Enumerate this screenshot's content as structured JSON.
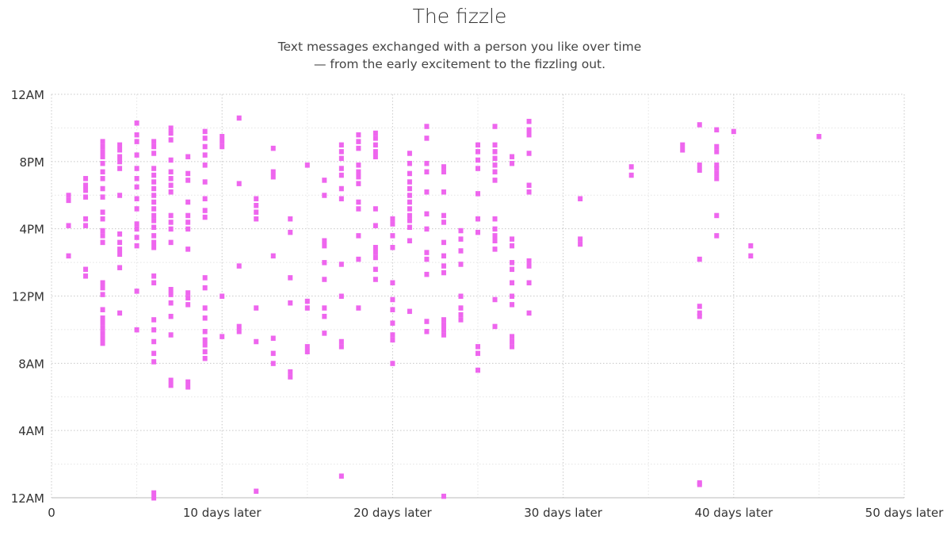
{
  "chart_data": {
    "type": "scatter",
    "title": "The fizzle",
    "subtitle": "Text messages exchanged with a person you like over time — from the early excitement to the fizzling out.",
    "xlabel": "",
    "ylabel": "",
    "x_unit": "days",
    "y_unit": "hour of day (0 = 12AM)",
    "xlim": [
      0,
      50
    ],
    "ylim": [
      0,
      24
    ],
    "grid": true,
    "color": "#ee66ee",
    "x_ticks": [
      {
        "value": 0,
        "label": "0"
      },
      {
        "value": 10,
        "label": "10 days later"
      },
      {
        "value": 20,
        "label": "20 days later"
      },
      {
        "value": 30,
        "label": "30 days later"
      },
      {
        "value": 40,
        "label": "40 days later"
      },
      {
        "value": 50,
        "label": "50 days later"
      }
    ],
    "y_ticks": [
      {
        "value": 0,
        "label": "12AM"
      },
      {
        "value": 4,
        "label": "4AM"
      },
      {
        "value": 8,
        "label": "8AM"
      },
      {
        "value": 12,
        "label": "12PM"
      },
      {
        "value": 16,
        "label": "4PM"
      },
      {
        "value": 20,
        "label": "8PM"
      },
      {
        "value": 24,
        "label": "12AM"
      }
    ],
    "points": [
      [
        1,
        18.0
      ],
      [
        1,
        17.7
      ],
      [
        1,
        16.2
      ],
      [
        1,
        14.4
      ],
      [
        2,
        19.0
      ],
      [
        2,
        18.6
      ],
      [
        2,
        18.3
      ],
      [
        2,
        17.9
      ],
      [
        2,
        16.6
      ],
      [
        2,
        16.2
      ],
      [
        2,
        13.6
      ],
      [
        2,
        13.2
      ],
      [
        3,
        21.2
      ],
      [
        3,
        20.9
      ],
      [
        3,
        20.6
      ],
      [
        3,
        20.3
      ],
      [
        3,
        19.9
      ],
      [
        3,
        19.4
      ],
      [
        3,
        19.0
      ],
      [
        3,
        18.4
      ],
      [
        3,
        17.9
      ],
      [
        3,
        17.0
      ],
      [
        3,
        16.6
      ],
      [
        3,
        15.9
      ],
      [
        3,
        15.6
      ],
      [
        3,
        15.2
      ],
      [
        3,
        12.8
      ],
      [
        3,
        12.5
      ],
      [
        3,
        12.1
      ],
      [
        3,
        11.2
      ],
      [
        3,
        10.7
      ],
      [
        3,
        10.4
      ],
      [
        3,
        10.1
      ],
      [
        3,
        9.8
      ],
      [
        3,
        9.5
      ],
      [
        3,
        9.2
      ],
      [
        4,
        21.0
      ],
      [
        4,
        20.7
      ],
      [
        4,
        20.3
      ],
      [
        4,
        20.0
      ],
      [
        4,
        19.6
      ],
      [
        4,
        18.0
      ],
      [
        4,
        15.7
      ],
      [
        4,
        14.8
      ],
      [
        4,
        14.5
      ],
      [
        4,
        15.2
      ],
      [
        4,
        13.7
      ],
      [
        4,
        11.0
      ],
      [
        5,
        22.3
      ],
      [
        5,
        21.6
      ],
      [
        5,
        21.2
      ],
      [
        5,
        20.4
      ],
      [
        5,
        19.6
      ],
      [
        5,
        19.0
      ],
      [
        5,
        18.5
      ],
      [
        5,
        17.8
      ],
      [
        5,
        17.2
      ],
      [
        5,
        16.3
      ],
      [
        5,
        16.0
      ],
      [
        5,
        15.5
      ],
      [
        5,
        15.0
      ],
      [
        5,
        12.3
      ],
      [
        5,
        10.0
      ],
      [
        6,
        21.2
      ],
      [
        6,
        20.9
      ],
      [
        6,
        20.5
      ],
      [
        6,
        19.6
      ],
      [
        6,
        19.2
      ],
      [
        6,
        18.8
      ],
      [
        6,
        18.4
      ],
      [
        6,
        18.0
      ],
      [
        6,
        17.6
      ],
      [
        6,
        17.2
      ],
      [
        6,
        16.8
      ],
      [
        6,
        16.5
      ],
      [
        6,
        16.1
      ],
      [
        6,
        15.6
      ],
      [
        6,
        15.2
      ],
      [
        6,
        14.9
      ],
      [
        6,
        13.2
      ],
      [
        6,
        12.8
      ],
      [
        6,
        10.6
      ],
      [
        6,
        10.0
      ],
      [
        6,
        9.3
      ],
      [
        6,
        8.6
      ],
      [
        6,
        8.1
      ],
      [
        6,
        0.3
      ],
      [
        6,
        0.0
      ],
      [
        7,
        22.0
      ],
      [
        7,
        21.7
      ],
      [
        7,
        21.3
      ],
      [
        7,
        20.1
      ],
      [
        7,
        19.4
      ],
      [
        7,
        19.0
      ],
      [
        7,
        18.6
      ],
      [
        7,
        18.2
      ],
      [
        7,
        16.8
      ],
      [
        7,
        16.4
      ],
      [
        7,
        16.0
      ],
      [
        7,
        15.2
      ],
      [
        7,
        12.4
      ],
      [
        7,
        12.1
      ],
      [
        7,
        11.6
      ],
      [
        7,
        10.8
      ],
      [
        7,
        9.7
      ],
      [
        7,
        7.0
      ],
      [
        7,
        6.7
      ],
      [
        8,
        20.3
      ],
      [
        8,
        19.3
      ],
      [
        8,
        18.9
      ],
      [
        8,
        17.6
      ],
      [
        8,
        16.8
      ],
      [
        8,
        16.4
      ],
      [
        8,
        16.0
      ],
      [
        8,
        14.8
      ],
      [
        8,
        12.2
      ],
      [
        8,
        11.9
      ],
      [
        8,
        11.5
      ],
      [
        8,
        6.9
      ],
      [
        8,
        6.6
      ],
      [
        9,
        21.8
      ],
      [
        9,
        21.4
      ],
      [
        9,
        20.9
      ],
      [
        9,
        20.4
      ],
      [
        9,
        19.8
      ],
      [
        9,
        18.8
      ],
      [
        9,
        17.8
      ],
      [
        9,
        17.1
      ],
      [
        9,
        16.7
      ],
      [
        9,
        13.1
      ],
      [
        9,
        12.5
      ],
      [
        9,
        11.3
      ],
      [
        9,
        10.7
      ],
      [
        9,
        9.9
      ],
      [
        9,
        9.4
      ],
      [
        9,
        9.1
      ],
      [
        9,
        8.7
      ],
      [
        9,
        8.3
      ],
      [
        10,
        21.5
      ],
      [
        10,
        21.2
      ],
      [
        10,
        20.9
      ],
      [
        10,
        12.0
      ],
      [
        10,
        9.6
      ],
      [
        11,
        22.6
      ],
      [
        11,
        18.7
      ],
      [
        11,
        13.8
      ],
      [
        11,
        10.2
      ],
      [
        11,
        9.9
      ],
      [
        12,
        17.8
      ],
      [
        12,
        17.4
      ],
      [
        12,
        17.0
      ],
      [
        12,
        16.6
      ],
      [
        12,
        11.3
      ],
      [
        12,
        9.3
      ],
      [
        12,
        0.4
      ],
      [
        13,
        20.8
      ],
      [
        13,
        19.4
      ],
      [
        13,
        19.1
      ],
      [
        13,
        14.4
      ],
      [
        13,
        9.5
      ],
      [
        13,
        8.6
      ],
      [
        13,
        8.0
      ],
      [
        14,
        16.6
      ],
      [
        14,
        15.8
      ],
      [
        14,
        13.1
      ],
      [
        14,
        11.6
      ],
      [
        14,
        7.5
      ],
      [
        14,
        7.2
      ],
      [
        15,
        19.8
      ],
      [
        15,
        11.7
      ],
      [
        15,
        11.3
      ],
      [
        15,
        9.0
      ],
      [
        15,
        8.7
      ],
      [
        16,
        18.9
      ],
      [
        16,
        18.0
      ],
      [
        16,
        15.3
      ],
      [
        16,
        15.0
      ],
      [
        16,
        14.0
      ],
      [
        16,
        13.0
      ],
      [
        16,
        11.3
      ],
      [
        16,
        10.8
      ],
      [
        16,
        9.8
      ],
      [
        17,
        21.0
      ],
      [
        17,
        20.6
      ],
      [
        17,
        20.2
      ],
      [
        17,
        19.6
      ],
      [
        17,
        19.2
      ],
      [
        17,
        18.4
      ],
      [
        17,
        17.8
      ],
      [
        17,
        13.9
      ],
      [
        17,
        12.0
      ],
      [
        17,
        9.3
      ],
      [
        17,
        9.0
      ],
      [
        17,
        1.3
      ],
      [
        18,
        21.6
      ],
      [
        18,
        21.2
      ],
      [
        18,
        20.8
      ],
      [
        18,
        19.8
      ],
      [
        18,
        19.4
      ],
      [
        18,
        19.1
      ],
      [
        18,
        18.7
      ],
      [
        18,
        17.6
      ],
      [
        18,
        17.2
      ],
      [
        18,
        15.6
      ],
      [
        18,
        14.2
      ],
      [
        18,
        11.3
      ],
      [
        19,
        21.7
      ],
      [
        19,
        21.4
      ],
      [
        19,
        21.0
      ],
      [
        19,
        20.6
      ],
      [
        19,
        20.3
      ],
      [
        19,
        17.2
      ],
      [
        19,
        16.2
      ],
      [
        19,
        14.9
      ],
      [
        19,
        14.6
      ],
      [
        19,
        14.3
      ],
      [
        19,
        13.6
      ],
      [
        19,
        13.0
      ],
      [
        20,
        16.6
      ],
      [
        20,
        16.3
      ],
      [
        20,
        15.6
      ],
      [
        20,
        14.9
      ],
      [
        20,
        12.8
      ],
      [
        20,
        11.8
      ],
      [
        20,
        11.2
      ],
      [
        20,
        10.4
      ],
      [
        20,
        9.7
      ],
      [
        20,
        9.4
      ],
      [
        20,
        8.0
      ],
      [
        21,
        20.5
      ],
      [
        21,
        19.9
      ],
      [
        21,
        19.3
      ],
      [
        21,
        18.8
      ],
      [
        21,
        18.4
      ],
      [
        21,
        18.0
      ],
      [
        21,
        17.6
      ],
      [
        21,
        17.2
      ],
      [
        21,
        16.8
      ],
      [
        21,
        16.5
      ],
      [
        21,
        16.1
      ],
      [
        21,
        15.3
      ],
      [
        21,
        11.1
      ],
      [
        22,
        22.1
      ],
      [
        22,
        21.4
      ],
      [
        22,
        19.9
      ],
      [
        22,
        19.4
      ],
      [
        22,
        18.2
      ],
      [
        22,
        16.9
      ],
      [
        22,
        16.0
      ],
      [
        22,
        14.6
      ],
      [
        22,
        14.2
      ],
      [
        22,
        13.3
      ],
      [
        22,
        10.5
      ],
      [
        22,
        9.9
      ],
      [
        23,
        19.7
      ],
      [
        23,
        19.4
      ],
      [
        23,
        18.2
      ],
      [
        23,
        16.8
      ],
      [
        23,
        16.4
      ],
      [
        23,
        15.2
      ],
      [
        23,
        14.4
      ],
      [
        23,
        13.8
      ],
      [
        23,
        13.4
      ],
      [
        23,
        10.6
      ],
      [
        23,
        10.3
      ],
      [
        23,
        10.0
      ],
      [
        23,
        9.7
      ],
      [
        23,
        0.1
      ],
      [
        24,
        15.9
      ],
      [
        24,
        15.4
      ],
      [
        24,
        14.7
      ],
      [
        24,
        13.9
      ],
      [
        24,
        12.0
      ],
      [
        24,
        11.3
      ],
      [
        24,
        10.9
      ],
      [
        24,
        10.6
      ],
      [
        25,
        21.0
      ],
      [
        25,
        20.6
      ],
      [
        25,
        20.1
      ],
      [
        25,
        19.6
      ],
      [
        25,
        18.1
      ],
      [
        25,
        16.6
      ],
      [
        25,
        15.8
      ],
      [
        25,
        9.0
      ],
      [
        25,
        8.6
      ],
      [
        25,
        7.6
      ],
      [
        26,
        22.1
      ],
      [
        26,
        21.0
      ],
      [
        26,
        20.6
      ],
      [
        26,
        20.2
      ],
      [
        26,
        19.8
      ],
      [
        26,
        19.4
      ],
      [
        26,
        18.9
      ],
      [
        26,
        16.6
      ],
      [
        26,
        16.0
      ],
      [
        26,
        15.6
      ],
      [
        26,
        15.3
      ],
      [
        26,
        14.8
      ],
      [
        26,
        11.8
      ],
      [
        26,
        10.2
      ],
      [
        27,
        20.3
      ],
      [
        27,
        19.9
      ],
      [
        27,
        15.4
      ],
      [
        27,
        15.0
      ],
      [
        27,
        14.0
      ],
      [
        27,
        13.6
      ],
      [
        27,
        12.8
      ],
      [
        27,
        12.0
      ],
      [
        27,
        11.5
      ],
      [
        27,
        9.6
      ],
      [
        27,
        9.3
      ],
      [
        27,
        9.0
      ],
      [
        28,
        22.4
      ],
      [
        28,
        21.9
      ],
      [
        28,
        21.6
      ],
      [
        28,
        20.5
      ],
      [
        28,
        18.6
      ],
      [
        28,
        18.2
      ],
      [
        28,
        14.1
      ],
      [
        28,
        13.8
      ],
      [
        28,
        12.8
      ],
      [
        28,
        11.0
      ],
      [
        31,
        17.8
      ],
      [
        31,
        15.4
      ],
      [
        31,
        15.1
      ],
      [
        34,
        19.7
      ],
      [
        34,
        19.2
      ],
      [
        37,
        21.0
      ],
      [
        37,
        20.7
      ],
      [
        38,
        22.2
      ],
      [
        38,
        19.8
      ],
      [
        38,
        19.5
      ],
      [
        38,
        14.2
      ],
      [
        38,
        11.4
      ],
      [
        38,
        11.0
      ],
      [
        38,
        10.8
      ],
      [
        38,
        0.9
      ],
      [
        38,
        0.8
      ],
      [
        39,
        21.9
      ],
      [
        39,
        20.9
      ],
      [
        39,
        20.6
      ],
      [
        39,
        19.8
      ],
      [
        39,
        19.6
      ],
      [
        39,
        19.3
      ],
      [
        39,
        19.0
      ],
      [
        39,
        16.8
      ],
      [
        39,
        15.6
      ],
      [
        40,
        21.8
      ],
      [
        41,
        15.0
      ],
      [
        41,
        14.4
      ],
      [
        45,
        21.5
      ]
    ]
  }
}
